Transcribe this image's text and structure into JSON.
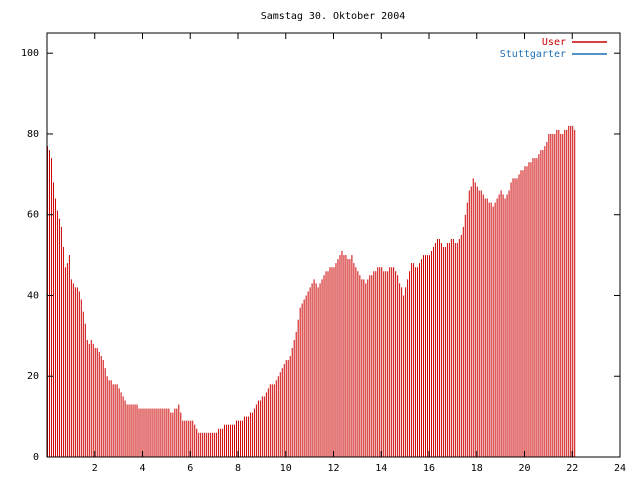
{
  "colors": {
    "user": "#cc0000",
    "stuttgarter": "#1f6fb4",
    "axis": "#000000",
    "background": "#ffffff"
  },
  "chart_data": {
    "type": "bar",
    "title": "Samstag 30. Oktober 2004",
    "xlabel": "",
    "ylabel": "",
    "xlim": [
      0,
      24
    ],
    "ylim": [
      0,
      105
    ],
    "xticks": [
      2,
      4,
      6,
      8,
      10,
      12,
      14,
      16,
      18,
      20,
      22,
      24
    ],
    "yticks": [
      0,
      20,
      40,
      60,
      80,
      100
    ],
    "grid": false,
    "legend_position": "top-right",
    "legend": [
      {
        "label": "User",
        "color": "#cc0000"
      },
      {
        "label": "Stuttgarter",
        "color": "#1f6fb4"
      }
    ],
    "series": [
      {
        "name": "User",
        "interval_hours": 0.08333,
        "values": [
          77,
          76,
          74,
          68,
          64,
          61,
          59,
          57,
          52,
          47,
          48,
          50,
          44,
          43,
          42,
          42,
          41,
          39,
          36,
          33,
          29,
          28,
          29,
          28,
          27,
          27,
          26,
          25,
          24,
          22,
          20,
          19,
          19,
          18,
          18,
          18,
          17,
          16,
          15,
          14,
          13,
          13,
          13,
          13,
          13,
          13,
          12,
          12,
          12,
          12,
          12,
          12,
          12,
          12,
          12,
          12,
          12,
          12,
          12,
          12,
          12,
          12,
          11,
          11,
          12,
          12,
          13,
          11,
          9,
          9,
          9,
          9,
          9,
          9,
          8,
          7,
          6,
          6,
          6,
          6,
          6,
          6,
          6,
          6,
          6,
          6,
          7,
          7,
          7,
          8,
          8,
          8,
          8,
          8,
          8,
          9,
          9,
          9,
          9,
          10,
          10,
          10,
          11,
          11,
          12,
          13,
          14,
          14,
          15,
          15,
          16,
          17,
          18,
          18,
          18,
          19,
          20,
          21,
          22,
          23,
          24,
          24,
          25,
          27,
          29,
          31,
          34,
          37,
          38,
          39,
          40,
          41,
          42,
          43,
          44,
          43,
          42,
          43,
          44,
          45,
          46,
          46,
          47,
          47,
          47,
          48,
          49,
          50,
          51,
          50,
          50,
          49,
          49,
          50,
          48,
          47,
          46,
          45,
          44,
          44,
          43,
          44,
          45,
          45,
          46,
          46,
          47,
          47,
          47,
          46,
          46,
          46,
          47,
          47,
          47,
          46,
          45,
          43,
          42,
          40,
          42,
          44,
          46,
          48,
          48,
          47,
          47,
          48,
          49,
          50,
          50,
          50,
          50,
          51,
          52,
          53,
          54,
          54,
          53,
          52,
          52,
          53,
          53,
          54,
          54,
          53,
          53,
          54,
          55,
          57,
          60,
          63,
          66,
          67,
          69,
          68,
          67,
          66,
          66,
          65,
          64,
          64,
          63,
          63,
          62,
          63,
          64,
          65,
          66,
          65,
          64,
          65,
          66,
          68,
          69,
          69,
          69,
          70,
          71,
          71,
          72,
          72,
          73,
          73,
          74,
          74,
          74,
          75,
          76,
          76,
          77,
          78,
          80,
          80,
          80,
          80,
          81,
          81,
          80,
          80,
          81,
          81,
          82,
          82,
          82,
          81
        ]
      },
      {
        "name": "Stuttgarter",
        "values": []
      }
    ]
  }
}
